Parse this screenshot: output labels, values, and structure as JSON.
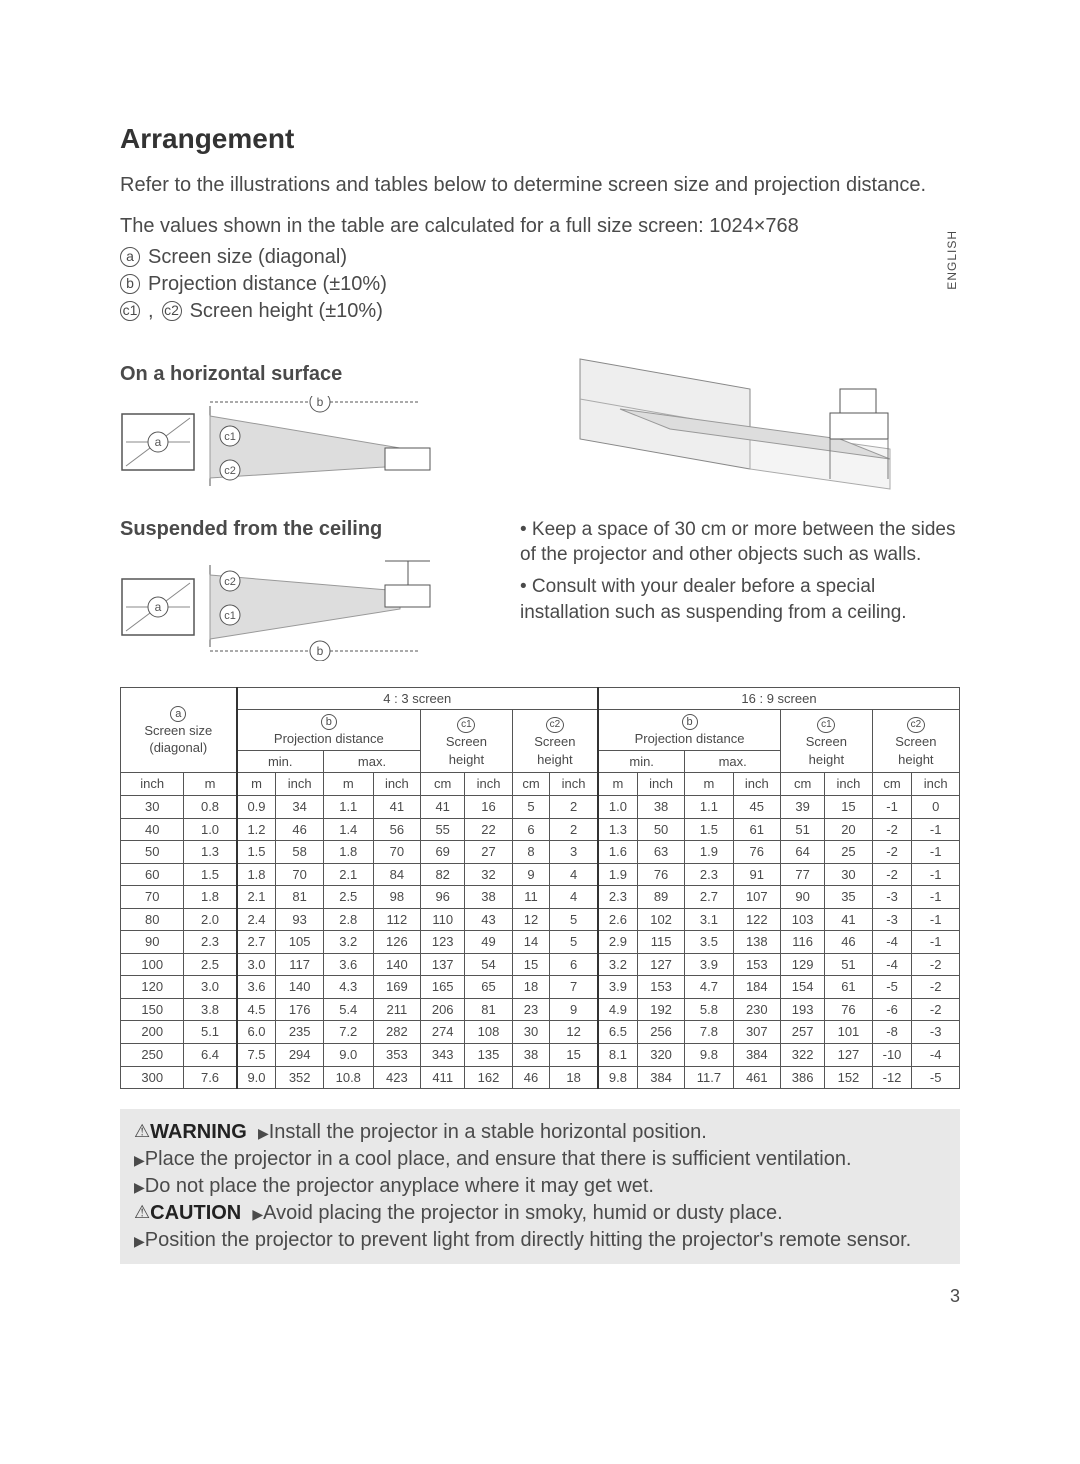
{
  "page": {
    "title": "Arrangement",
    "intro": "Refer to the illustrations and tables below to determine screen size and projection distance.",
    "values_note": "The values shown in the table are calculated for a full size screen: 1024×768",
    "defs": {
      "a": "Screen size (diagonal)",
      "b": "Projection distance (±10%)",
      "c": "Screen height (±10%)"
    },
    "language": "ENGLISH",
    "horizontal_header": "On a horizontal surface",
    "suspended_header": "Suspended from the ceiling",
    "notes": [
      "• Keep a space of 30 cm or more between the sides of the projector and other objects such as walls.",
      "• Consult with your dealer before a special installation such as suspending from a ceiling."
    ],
    "pagenum": "3"
  },
  "table": {
    "top_headers": {
      "a_line1": "ⓐ",
      "a_line2": "Screen size",
      "a_line3": "(diagonal)",
      "fourthree": "4 : 3 screen",
      "sixnine": "16 : 9 screen",
      "b_line1": "ⓑ",
      "b_line2": "Projection distance",
      "c1_line1": "c1",
      "c_line2": "Screen",
      "c_line3": "height",
      "c2_line1": "c2",
      "min": "min.",
      "max": "max.",
      "inch": "inch",
      "m": "m",
      "cm": "cm"
    },
    "rows": [
      [
        "30",
        "0.8",
        "0.9",
        "34",
        "1.1",
        "41",
        "41",
        "16",
        "5",
        "2",
        "1.0",
        "38",
        "1.1",
        "45",
        "39",
        "15",
        "-1",
        "0"
      ],
      [
        "40",
        "1.0",
        "1.2",
        "46",
        "1.4",
        "56",
        "55",
        "22",
        "6",
        "2",
        "1.3",
        "50",
        "1.5",
        "61",
        "51",
        "20",
        "-2",
        "-1"
      ],
      [
        "50",
        "1.3",
        "1.5",
        "58",
        "1.8",
        "70",
        "69",
        "27",
        "8",
        "3",
        "1.6",
        "63",
        "1.9",
        "76",
        "64",
        "25",
        "-2",
        "-1"
      ],
      [
        "60",
        "1.5",
        "1.8",
        "70",
        "2.1",
        "84",
        "82",
        "32",
        "9",
        "4",
        "1.9",
        "76",
        "2.3",
        "91",
        "77",
        "30",
        "-2",
        "-1"
      ],
      [
        "70",
        "1.8",
        "2.1",
        "81",
        "2.5",
        "98",
        "96",
        "38",
        "11",
        "4",
        "2.3",
        "89",
        "2.7",
        "107",
        "90",
        "35",
        "-3",
        "-1"
      ],
      [
        "80",
        "2.0",
        "2.4",
        "93",
        "2.8",
        "112",
        "110",
        "43",
        "12",
        "5",
        "2.6",
        "102",
        "3.1",
        "122",
        "103",
        "41",
        "-3",
        "-1"
      ],
      [
        "90",
        "2.3",
        "2.7",
        "105",
        "3.2",
        "126",
        "123",
        "49",
        "14",
        "5",
        "2.9",
        "115",
        "3.5",
        "138",
        "116",
        "46",
        "-4",
        "-1"
      ],
      [
        "100",
        "2.5",
        "3.0",
        "117",
        "3.6",
        "140",
        "137",
        "54",
        "15",
        "6",
        "3.2",
        "127",
        "3.9",
        "153",
        "129",
        "51",
        "-4",
        "-2"
      ],
      [
        "120",
        "3.0",
        "3.6",
        "140",
        "4.3",
        "169",
        "165",
        "65",
        "18",
        "7",
        "3.9",
        "153",
        "4.7",
        "184",
        "154",
        "61",
        "-5",
        "-2"
      ],
      [
        "150",
        "3.8",
        "4.5",
        "176",
        "5.4",
        "211",
        "206",
        "81",
        "23",
        "9",
        "4.9",
        "192",
        "5.8",
        "230",
        "193",
        "76",
        "-6",
        "-2"
      ],
      [
        "200",
        "5.1",
        "6.0",
        "235",
        "7.2",
        "282",
        "274",
        "108",
        "30",
        "12",
        "6.5",
        "256",
        "7.8",
        "307",
        "257",
        "101",
        "-8",
        "-3"
      ],
      [
        "250",
        "6.4",
        "7.5",
        "294",
        "9.0",
        "353",
        "343",
        "135",
        "38",
        "15",
        "8.1",
        "320",
        "9.8",
        "384",
        "322",
        "127",
        "-10",
        "-4"
      ],
      [
        "300",
        "7.6",
        "9.0",
        "352",
        "10.8",
        "423",
        "411",
        "162",
        "46",
        "18",
        "9.8",
        "384",
        "11.7",
        "461",
        "386",
        "152",
        "-12",
        "-5"
      ]
    ]
  },
  "warnings": {
    "warning_label": "WARNING",
    "warning_items": [
      "Install the projector in a stable horizontal position.",
      "Place the projector in a cool place, and ensure that there is sufficient ventilation.",
      "Do not place the projector anyplace where it may get wet."
    ],
    "caution_label": "CAUTION",
    "caution_items": [
      "Avoid placing the projector in smoky, humid or dusty place.",
      "Position the projector to prevent light from directly hitting the projector's remote sensor."
    ]
  },
  "style": {
    "text_color": "#4a4a4a",
    "border_color": "#555555",
    "warn_bg": "#e8e8e8",
    "font": "Arial"
  }
}
